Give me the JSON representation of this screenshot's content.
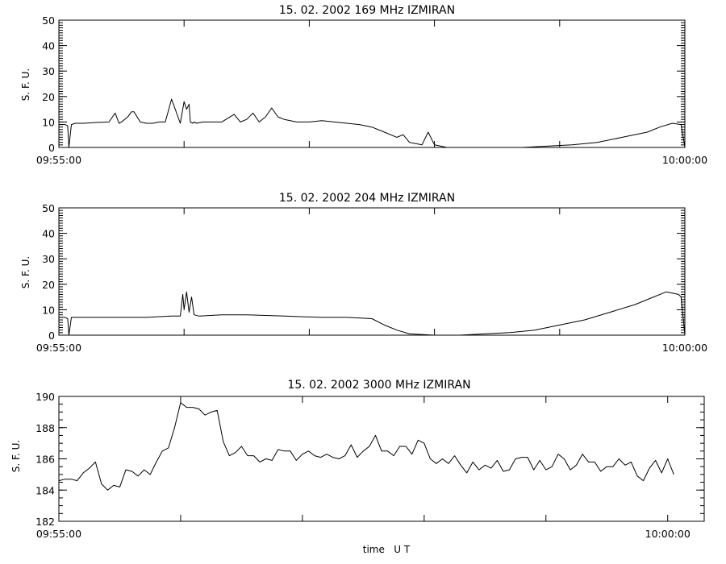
{
  "chart_data": [
    {
      "type": "line",
      "title": "15.  02.  2002    169  MHz    IZMIRAN",
      "ylabel": "S. F. U.",
      "xlabel": "",
      "xlim": [
        "09:55:00",
        "10:00:00"
      ],
      "ylim": [
        0,
        50
      ],
      "yticks": [
        0,
        10,
        20,
        30,
        40,
        50
      ],
      "ytick_labels": [
        "0",
        "10",
        "20",
        "30",
        "40",
        "50"
      ],
      "xtick_labels": [
        "09:55:00",
        "10:00:00"
      ],
      "x_unit": "minutes after 09:55:00",
      "series": [
        {
          "x": [
            0,
            0.05,
            0.07,
            0.08,
            0.1,
            0.13,
            0.2,
            0.3,
            0.4,
            0.45,
            0.48,
            0.5,
            0.55,
            0.58,
            0.6,
            0.65,
            0.7,
            0.75,
            0.8,
            0.85,
            0.9,
            0.97,
            1.0,
            1.02,
            1.04,
            1.05,
            1.07,
            1.08,
            1.1,
            1.15,
            1.2,
            1.3,
            1.4,
            1.45,
            1.5,
            1.55,
            1.6,
            1.65,
            1.7,
            1.75,
            1.8,
            1.9,
            2.0,
            2.1,
            2.2,
            2.3,
            2.4,
            2.5,
            2.6,
            2.7,
            2.75,
            2.8,
            2.9,
            2.95,
            3.0,
            3.05,
            3.1,
            3.2,
            3.3,
            3.5,
            3.7,
            3.9,
            4.1,
            4.3,
            4.5,
            4.7,
            4.8,
            4.9,
            4.97,
            5.0
          ],
          "values": [
            9,
            9,
            8.5,
            0,
            9,
            9.5,
            9.5,
            9.8,
            10,
            13.5,
            9.5,
            10,
            12,
            14,
            14,
            10,
            9.5,
            9.5,
            10,
            10,
            19,
            9.5,
            18,
            15,
            17,
            10,
            9.5,
            10,
            9.5,
            10,
            10,
            10,
            13,
            10,
            11,
            13.5,
            10,
            12,
            15.5,
            12,
            11,
            10,
            10,
            10.5,
            10,
            9.5,
            9,
            8,
            6,
            4,
            5,
            2,
            1,
            6,
            1,
            0.5,
            0,
            0,
            0,
            0,
            0,
            0.5,
            1,
            2,
            4,
            6,
            8,
            9.5,
            9,
            0
          ]
        }
      ]
    },
    {
      "type": "line",
      "title": "15.  02.  2002    204  MHz    IZMIRAN",
      "ylabel": "S. F. U.",
      "xlabel": "",
      "xlim": [
        "09:55:00",
        "10:00:00"
      ],
      "ylim": [
        0,
        50
      ],
      "yticks": [
        0,
        10,
        20,
        30,
        40,
        50
      ],
      "ytick_labels": [
        "0",
        "10",
        "20",
        "30",
        "40",
        "50"
      ],
      "xtick_labels": [
        "09:55:00",
        "10:00:00"
      ],
      "x_unit": "minutes after 09:55:00",
      "series": [
        {
          "x": [
            0,
            0.05,
            0.07,
            0.08,
            0.1,
            0.2,
            0.3,
            0.5,
            0.7,
            0.9,
            0.97,
            0.99,
            1.0,
            1.02,
            1.04,
            1.06,
            1.08,
            1.12,
            1.3,
            1.5,
            1.8,
            2.1,
            2.3,
            2.5,
            2.6,
            2.7,
            2.8,
            3.0,
            3.2,
            3.4,
            3.6,
            3.8,
            4.0,
            4.2,
            4.4,
            4.6,
            4.75,
            4.85,
            4.95,
            4.97,
            5.0
          ],
          "values": [
            7,
            7,
            6.5,
            0,
            7,
            7,
            7,
            7,
            7,
            7.5,
            7.5,
            16,
            10,
            17,
            9,
            15,
            8,
            7.5,
            8,
            8,
            7.5,
            7,
            7,
            6.5,
            4,
            2,
            0.5,
            0,
            0,
            0.5,
            1,
            2,
            4,
            6,
            9,
            12,
            15,
            17,
            16,
            15,
            0
          ]
        }
      ]
    },
    {
      "type": "line",
      "title": "15.  02.  2002     3000  MHz     IZMIRAN",
      "ylabel": "S. F. U.",
      "xlabel": "time   U T",
      "xlim": [
        "09:55:00",
        "10:00:00"
      ],
      "ylim": [
        182,
        190
      ],
      "yticks": [
        182,
        184,
        186,
        188,
        190
      ],
      "ytick_labels": [
        "182",
        "184",
        "186",
        "188",
        "190"
      ],
      "xtick_labels": [
        "09:55:00",
        "10:00:00"
      ],
      "x_unit": "minutes after 09:55:00",
      "series": [
        {
          "x": [
            0,
            0.05,
            0.1,
            0.15,
            0.2,
            0.25,
            0.3,
            0.35,
            0.4,
            0.45,
            0.5,
            0.55,
            0.6,
            0.65,
            0.7,
            0.75,
            0.8,
            0.85,
            0.9,
            0.95,
            1.0,
            1.05,
            1.1,
            1.15,
            1.2,
            1.25,
            1.3,
            1.35,
            1.4,
            1.45,
            1.5,
            1.55,
            1.6,
            1.65,
            1.7,
            1.75,
            1.8,
            1.85,
            1.9,
            1.95,
            2.0,
            2.05,
            2.1,
            2.15,
            2.2,
            2.25,
            2.3,
            2.35,
            2.4,
            2.45,
            2.5,
            2.55,
            2.6,
            2.65,
            2.7,
            2.75,
            2.8,
            2.85,
            2.9,
            2.95,
            3.0,
            3.05,
            3.1,
            3.15,
            3.2,
            3.25,
            3.3,
            3.35,
            3.4,
            3.45,
            3.5,
            3.55,
            3.6,
            3.65,
            3.7,
            3.75,
            3.8,
            3.85,
            3.9,
            3.95,
            4.0,
            4.05,
            4.1,
            4.15,
            4.2,
            4.25,
            4.3,
            4.35,
            4.4,
            4.45,
            4.5,
            4.55,
            4.6,
            4.65,
            4.7,
            4.75,
            4.8,
            4.85,
            4.9,
            4.95,
            5.0,
            5.05
          ],
          "values": [
            184.6,
            184.7,
            184.7,
            184.6,
            185.1,
            185.4,
            185.8,
            184.4,
            184.0,
            184.3,
            184.2,
            185.3,
            185.2,
            184.9,
            185.3,
            185.0,
            185.8,
            186.5,
            186.7,
            188.0,
            189.6,
            189.3,
            189.3,
            189.2,
            188.8,
            189.0,
            189.1,
            187.1,
            186.2,
            186.4,
            186.8,
            186.2,
            186.2,
            185.8,
            186.0,
            185.9,
            186.6,
            186.5,
            186.5,
            185.9,
            186.3,
            186.5,
            186.2,
            186.1,
            186.3,
            186.1,
            186.0,
            186.2,
            186.9,
            186.1,
            186.5,
            186.8,
            187.5,
            186.5,
            186.5,
            186.2,
            186.8,
            186.8,
            186.3,
            187.2,
            187.0,
            186.0,
            185.7,
            186.0,
            185.7,
            186.2,
            185.6,
            185.1,
            185.8,
            185.3,
            185.6,
            185.4,
            185.9,
            185.2,
            185.3,
            186.0,
            186.1,
            186.1,
            185.3,
            185.9,
            185.3,
            185.5,
            186.3,
            186.0,
            185.3,
            185.6,
            186.3,
            185.8,
            185.8,
            185.2,
            185.5,
            185.5,
            186.0,
            185.6,
            185.8,
            184.9,
            184.6,
            185.4,
            185.9,
            185.1,
            186.0,
            185.0
          ]
        }
      ]
    }
  ]
}
